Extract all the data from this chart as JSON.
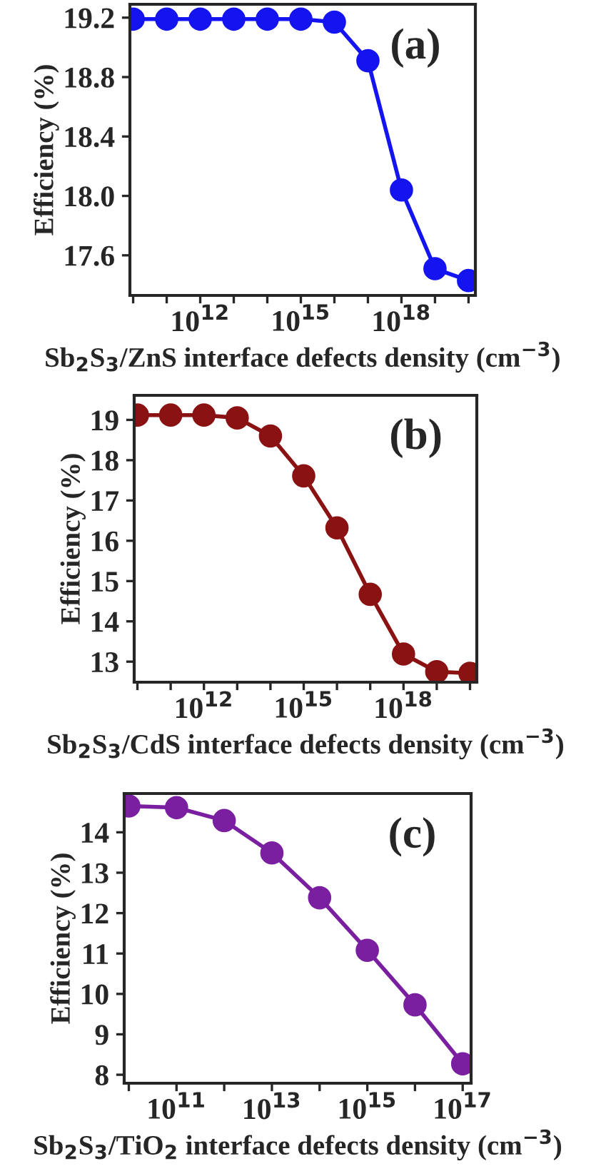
{
  "chart_data": [
    {
      "type": "line",
      "marker": "circle",
      "log": "x",
      "xlabel": "Sb$_{2}$S$_{3}$/ZnS interface defects density (cm$^{−3}$)",
      "ylabel": "Efficiency (%)",
      "annotations": [
        "(a)"
      ],
      "x": [
        10000000000.0,
        100000000000.0,
        1000000000000.0,
        10000000000000.0,
        100000000000000.0,
        1000000000000000.0,
        1e+16,
        1e+17,
        1e+18,
        1e+19,
        1e+20
      ],
      "series": [
        {
          "color": "#1414f0",
          "values": [
            19.19,
            19.19,
            19.19,
            19.19,
            19.19,
            19.19,
            19.17,
            18.91,
            18.04,
            17.51,
            17.43
          ]
        }
      ],
      "xlim": [
        8000000000.0,
        1.6e+20
      ],
      "ylim": [
        17.33,
        19.29
      ],
      "xticks": [
        {
          "value": 10000000000.0,
          "label": null
        },
        {
          "value": 100000000000.0,
          "label": null
        },
        {
          "value": 1000000000000.0,
          "label": "10$^{12}$"
        },
        {
          "value": 10000000000000.0,
          "label": null
        },
        {
          "value": 100000000000000.0,
          "label": null
        },
        {
          "value": 1000000000000000.0,
          "label": "10$^{15}$"
        },
        {
          "value": 1e+16,
          "label": null
        },
        {
          "value": 1e+17,
          "label": null
        },
        {
          "value": 1e+18,
          "label": "10$^{18}$"
        },
        {
          "value": 1e+19,
          "label": null
        },
        {
          "value": 1e+20,
          "label": null
        }
      ],
      "yticks": [
        {
          "value": 17.6,
          "label": "17.6"
        },
        {
          "value": 18.0,
          "label": "18.0"
        },
        {
          "value": 18.4,
          "label": "18.4"
        },
        {
          "value": 18.8,
          "label": "18.8"
        },
        {
          "value": 19.2,
          "label": "19.2"
        }
      ]
    },
    {
      "type": "line",
      "marker": "circle",
      "log": "x",
      "xlabel": "Sb$_{2}$S$_{3}$/CdS interface defects density (cm$^{−3}$)",
      "ylabel": "Efficiency (%)",
      "annotations": [
        "(b)"
      ],
      "x": [
        10000000000.0,
        100000000000.0,
        1000000000000.0,
        10000000000000.0,
        100000000000000.0,
        1000000000000000.0,
        1e+16,
        1e+17,
        1e+18,
        1e+19,
        1e+20
      ],
      "series": [
        {
          "color": "#8b1212",
          "values": [
            19.12,
            19.12,
            19.12,
            19.05,
            18.6,
            17.61,
            16.32,
            14.67,
            13.19,
            12.75,
            12.71
          ]
        }
      ],
      "xlim": [
        8000000000.0,
        1.6e+20
      ],
      "ylim": [
        12.49,
        19.61
      ],
      "xticks": [
        {
          "value": 10000000000.0,
          "label": null
        },
        {
          "value": 100000000000.0,
          "label": null
        },
        {
          "value": 1000000000000.0,
          "label": "10$^{12}$"
        },
        {
          "value": 10000000000000.0,
          "label": null
        },
        {
          "value": 100000000000000.0,
          "label": null
        },
        {
          "value": 1000000000000000.0,
          "label": "10$^{15}$"
        },
        {
          "value": 1e+16,
          "label": null
        },
        {
          "value": 1e+17,
          "label": null
        },
        {
          "value": 1e+18,
          "label": "10$^{18}$"
        },
        {
          "value": 1e+19,
          "label": null
        },
        {
          "value": 1e+20,
          "label": null
        }
      ],
      "yticks": [
        13,
        14,
        15,
        16,
        17,
        18,
        19
      ]
    },
    {
      "type": "line",
      "marker": "circle",
      "log": "x",
      "xlabel": "Sb$_{2}$S$_{3}$/TiO$_{2}$ interface defects density (cm$^{−3}$)",
      "ylabel": "Efficiency (%)",
      "annotations": [
        "(c)"
      ],
      "x": [
        10000000000.0,
        100000000000.0,
        1000000000000.0,
        10000000000000.0,
        100000000000000.0,
        1000000000000000.0,
        1e+16,
        1e+17
      ],
      "series": [
        {
          "color": "#7a1fa0",
          "values": [
            14.65,
            14.61,
            14.29,
            13.49,
            12.38,
            11.08,
            9.73,
            8.27
          ]
        }
      ],
      "xlim": [
        8000000000.0,
        1.5e+17
      ],
      "ylim": [
        7.79,
        14.96
      ],
      "xticks": [
        {
          "value": 10000000000.0,
          "label": null
        },
        {
          "value": 100000000000.0,
          "label": "10$^{11}$"
        },
        {
          "value": 1000000000000.0,
          "label": null
        },
        {
          "value": 10000000000000.0,
          "label": "10$^{13}$"
        },
        {
          "value": 100000000000000.0,
          "label": null
        },
        {
          "value": 1000000000000000.0,
          "label": "10$^{15}$"
        },
        {
          "value": 1e+16,
          "label": null
        },
        {
          "value": 1e+17,
          "label": "10$^{17}$"
        }
      ],
      "yticks": [
        8,
        9,
        10,
        11,
        12,
        13,
        14
      ]
    }
  ]
}
